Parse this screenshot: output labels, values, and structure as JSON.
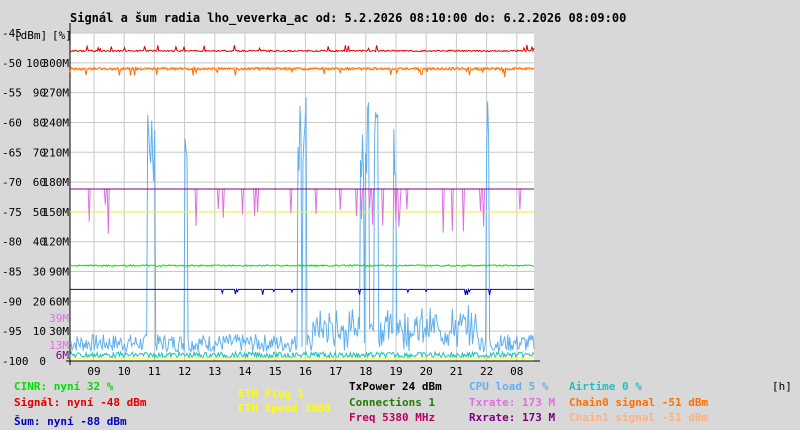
{
  "title": "Signál a šum radia lho_veverka_ac od: 5.2.2026 08:10:00 do: 6.2.2026 08:09:00",
  "axis_unit_left": "[dBm]",
  "axis_unit_mid": "[%]",
  "axis_unit_right": "[h]",
  "colors": {
    "background": "#d8d8d8",
    "plot": "#ffffff",
    "grid": "#c8c8c8",
    "cinr": "#00e000",
    "signal": "#e00000",
    "noise": "#0000c0",
    "eth_plug": "#ffff00",
    "eth_speed": "#ffff00",
    "txpower": "#000000",
    "connections": "#208000",
    "freq": "#c00060",
    "cpu": "#60b0f0",
    "txrate": "#e070e0",
    "rxrate": "#800080",
    "airtime": "#20c0c0",
    "chain0": "#ff7000",
    "chain1": "#ffb080"
  },
  "chart_data": {
    "type": "line",
    "title": "Signál a šum radia lho_veverka_ac od: 5.2.2026 08:10:00 do: 6.2.2026 08:09:00",
    "x_ticks": [
      "09",
      "10",
      "11",
      "12",
      "13",
      "14",
      "15",
      "16",
      "17",
      "18",
      "19",
      "20",
      "21",
      "22",
      "08"
    ],
    "y_dbm_ticks": [
      "-45",
      "-50",
      "-55",
      "-60",
      "-65",
      "-70",
      "-75",
      "-80",
      "-85",
      "-90",
      "-95",
      "-100"
    ],
    "y_pct_ticks": [
      "100",
      "90",
      "80",
      "70",
      "60",
      "50",
      "40",
      "30",
      "20",
      "10",
      "0"
    ],
    "y_rate_ticks": [
      "300M",
      "270M",
      "240M",
      "210M",
      "180M",
      "150M",
      "120M",
      "90M",
      "60M",
      "30M"
    ],
    "y_rate_colored": [
      {
        "label": "39M",
        "color": "#e070e0"
      },
      {
        "label": "13M",
        "color": "#e070e0"
      },
      {
        "label": "6M",
        "color": "#800080"
      }
    ],
    "ylim_dbm": [
      -100,
      -45
    ],
    "ylim_pct": [
      0,
      100
    ],
    "ylim_rate": [
      0,
      300
    ],
    "grid": true,
    "legend_position": "bottom",
    "series": [
      {
        "name": "Signál",
        "unit": "dBm",
        "level": -48
      },
      {
        "name": "Šum",
        "unit": "dBm",
        "level": -88
      },
      {
        "name": "CINR",
        "unit": "%",
        "level": 32
      },
      {
        "name": "Chain0 signal",
        "unit": "dBm",
        "level": -51
      },
      {
        "name": "Chain1 signal",
        "unit": "dBm",
        "level": -51
      },
      {
        "name": "Txrate",
        "unit": "M",
        "level": 173
      },
      {
        "name": "Rxrate",
        "unit": "M",
        "level": 173
      },
      {
        "name": "ETH Speed",
        "unit": "M",
        "level": 150
      },
      {
        "name": "CPU load",
        "unit": "%",
        "level": 5
      },
      {
        "name": "Airtime",
        "unit": "%",
        "level": 0
      }
    ]
  },
  "legend": [
    {
      "text": "CINR: nyní 32 %",
      "color": "#00e000"
    },
    {
      "text": "Signál: nyní -48 dBm",
      "color": "#e00000"
    },
    {
      "text": "Šum: nyní -88 dBm",
      "color": "#0000c0"
    },
    {
      "text": "ETH Plug 1",
      "color": "#ffff00"
    },
    {
      "text": "ETH Speed 1000",
      "color": "#ffff00"
    },
    {
      "text": "TxPower 24 dBm",
      "color": "#000000"
    },
    {
      "text": "Connections 1",
      "color": "#208000"
    },
    {
      "text": "Freq 5380 MHz",
      "color": "#c00060"
    },
    {
      "text": "CPU load 5 %",
      "color": "#60b0f0"
    },
    {
      "text": "Txrate: 173 M",
      "color": "#e070e0"
    },
    {
      "text": "Rxrate: 173 M",
      "color": "#800080"
    },
    {
      "text": "Airtime 0 %",
      "color": "#20c0c0"
    },
    {
      "text": "Chain0 signal -51 dBm",
      "color": "#ff7000"
    },
    {
      "text": "Chain1 signal -51 dBm",
      "color": "#ffb080"
    }
  ]
}
